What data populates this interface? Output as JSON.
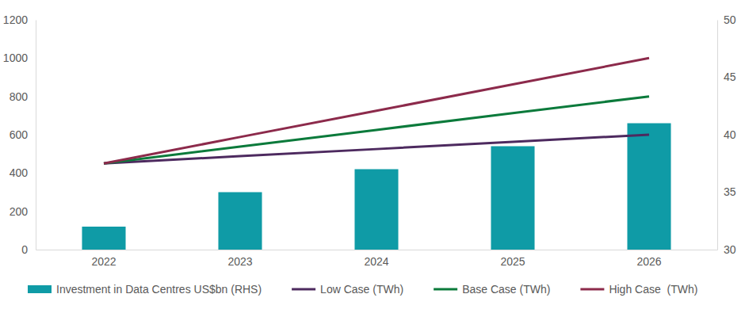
{
  "chart_data": {
    "type": "bar",
    "categories": [
      "2022",
      "2023",
      "2024",
      "2025",
      "2026"
    ],
    "ylim": [
      0,
      1200
    ],
    "yticks": [
      0,
      200,
      400,
      600,
      800,
      1000,
      1200
    ],
    "y2lim": [
      30,
      50
    ],
    "y2ticks": [
      30,
      35,
      40,
      45,
      50
    ],
    "grid": false,
    "legend": "bottom",
    "series": [
      {
        "name": "Investment in Data Centres US$bn (RHS)",
        "type": "bar",
        "axis": "y2",
        "color": "#0f9ba6",
        "values": [
          32,
          35,
          37,
          39,
          41
        ]
      },
      {
        "name": "Low Case (TWh)",
        "type": "line",
        "color": "#4d2a5f",
        "values": [
          450,
          488,
          525,
          563,
          600
        ]
      },
      {
        "name": "Base Case (TWh)",
        "type": "line",
        "color": "#0b7a3b",
        "values": [
          450,
          538,
          625,
          713,
          800
        ]
      },
      {
        "name": "High Case  (TWh)",
        "type": "line",
        "color": "#8c2a4b",
        "values": [
          450,
          588,
          725,
          863,
          1000
        ]
      }
    ]
  }
}
